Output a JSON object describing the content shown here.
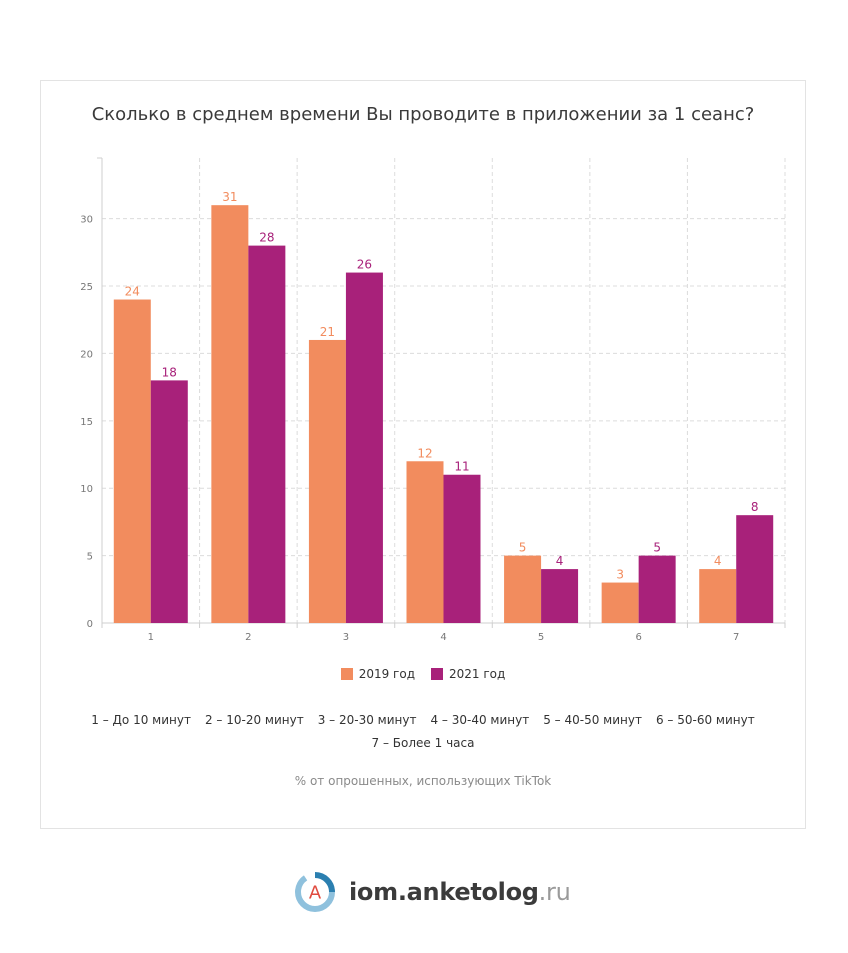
{
  "title": "Сколько в среднем времени Вы проводите в приложении за 1 сеанс?",
  "legend": [
    {
      "label": "2019 год",
      "color": "#f28c5e"
    },
    {
      "label": "2021 год",
      "color": "#a8217a"
    }
  ],
  "notes": {
    "row1": [
      "1 – До 10 минут",
      "2 – 10-20 минут",
      "3 – 20-30 минут",
      "4 – 30-40 минут",
      "5 – 40-50 минут",
      "6 – 50-60 минут"
    ],
    "row2": "7 – Более 1 часа"
  },
  "source": "% от опрошенных, использующих TikTok",
  "brand": {
    "name": "iom.anketolog",
    "tld": ".ru",
    "logo_letter": "A",
    "logo_colors": [
      "#2b7fb0",
      "#8fc1dd"
    ]
  },
  "chart_data": {
    "type": "bar",
    "categories": [
      "1",
      "2",
      "3",
      "4",
      "5",
      "6",
      "7"
    ],
    "series": [
      {
        "name": "2019 год",
        "color": "#f28c5e",
        "values": [
          24,
          31,
          21,
          12,
          5,
          3,
          4
        ]
      },
      {
        "name": "2021 год",
        "color": "#a8217a",
        "values": [
          18,
          28,
          26,
          11,
          4,
          5,
          8
        ]
      }
    ],
    "yticks": [
      0,
      5,
      10,
      15,
      20,
      25,
      30
    ],
    "ylim": [
      0,
      34.5
    ],
    "grid": true,
    "legend_position": "bottom"
  }
}
